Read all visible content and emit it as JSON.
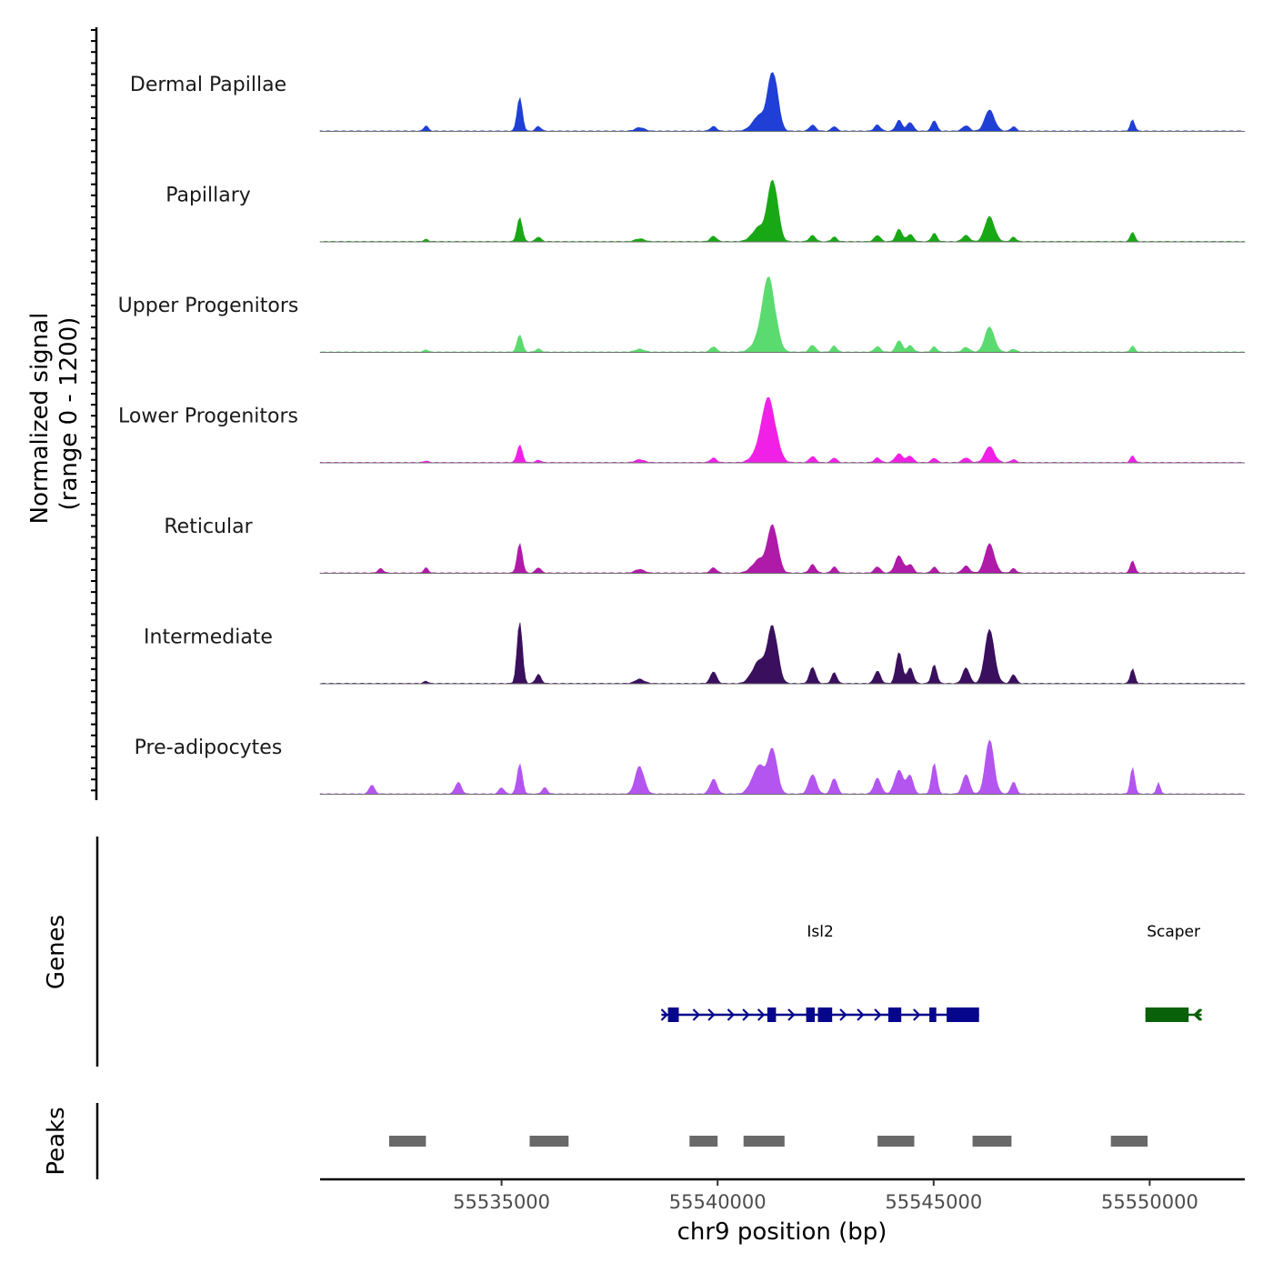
{
  "chart_data": {
    "type": "area",
    "title": "",
    "chromosome": "chr9",
    "xlabel": "chr9 position (bp)",
    "ylabel_line1": "Normalized signal",
    "ylabel_line2": "(range 0 - 1200)",
    "yrange": [
      0,
      1200
    ],
    "xlim": [
      55530800,
      55552200
    ],
    "x_ticks": [
      55535000,
      55540000,
      55545000,
      55550000
    ],
    "x_tick_labels": [
      "55535000",
      "55540000",
      "55545000",
      "55550000"
    ],
    "tracks": [
      {
        "name": "Dermal Papillae",
        "color": "#1f3fd6",
        "scale": 0.75,
        "peaks": [
          [
            55533250,
            70,
            50
          ],
          [
            55535420,
            420,
            60
          ],
          [
            55535850,
            60,
            60
          ],
          [
            55538200,
            50,
            100
          ],
          [
            55539900,
            60,
            70
          ],
          [
            55540950,
            200,
            150
          ],
          [
            55541280,
            830,
            110
          ],
          [
            55542200,
            80,
            70
          ],
          [
            55542700,
            60,
            60
          ],
          [
            55543700,
            80,
            70
          ],
          [
            55544200,
            140,
            70
          ],
          [
            55544450,
            120,
            70
          ],
          [
            55545010,
            140,
            60
          ],
          [
            55545750,
            70,
            80
          ],
          [
            55546300,
            280,
            110
          ],
          [
            55546850,
            60,
            60
          ],
          [
            55549600,
            150,
            50
          ]
        ]
      },
      {
        "name": "Papillary",
        "color": "#19a815",
        "scale": 0.78,
        "peaks": [
          [
            55533250,
            30,
            50
          ],
          [
            55535420,
            300,
            60
          ],
          [
            55535850,
            60,
            60
          ],
          [
            55538200,
            40,
            100
          ],
          [
            55539900,
            70,
            70
          ],
          [
            55540950,
            190,
            150
          ],
          [
            55541280,
            860,
            110
          ],
          [
            55542200,
            80,
            70
          ],
          [
            55542700,
            60,
            60
          ],
          [
            55543700,
            80,
            70
          ],
          [
            55544200,
            160,
            70
          ],
          [
            55544450,
            100,
            70
          ],
          [
            55545010,
            110,
            60
          ],
          [
            55545750,
            80,
            80
          ],
          [
            55546300,
            330,
            110
          ],
          [
            55546850,
            60,
            60
          ],
          [
            55549600,
            130,
            50
          ]
        ]
      },
      {
        "name": "Upper Progenitors",
        "color": "#5bdb6f",
        "scale": 1.05,
        "peaks": [
          [
            55533250,
            30,
            50
          ],
          [
            55535420,
            220,
            60
          ],
          [
            55535850,
            40,
            60
          ],
          [
            55538200,
            40,
            100
          ],
          [
            55539900,
            70,
            70
          ],
          [
            55540950,
            160,
            150
          ],
          [
            55541200,
            950,
            140
          ],
          [
            55542200,
            90,
            70
          ],
          [
            55542700,
            80,
            60
          ],
          [
            55543700,
            70,
            70
          ],
          [
            55544200,
            150,
            70
          ],
          [
            55544450,
            90,
            70
          ],
          [
            55545010,
            70,
            60
          ],
          [
            55545750,
            60,
            80
          ],
          [
            55546300,
            330,
            110
          ],
          [
            55546850,
            40,
            60
          ],
          [
            55549600,
            80,
            50
          ]
        ]
      },
      {
        "name": "Lower Progenitors",
        "color": "#f020e6",
        "scale": 0.95,
        "peaks": [
          [
            55533250,
            20,
            50
          ],
          [
            55535420,
            220,
            60
          ],
          [
            55535850,
            30,
            60
          ],
          [
            55538200,
            40,
            100
          ],
          [
            55539900,
            60,
            70
          ],
          [
            55540950,
            150,
            150
          ],
          [
            55541200,
            810,
            150
          ],
          [
            55542200,
            80,
            70
          ],
          [
            55542700,
            60,
            60
          ],
          [
            55543700,
            60,
            70
          ],
          [
            55544200,
            110,
            90
          ],
          [
            55544450,
            90,
            70
          ],
          [
            55545010,
            60,
            60
          ],
          [
            55545750,
            60,
            80
          ],
          [
            55546300,
            210,
            110
          ],
          [
            55546850,
            40,
            60
          ],
          [
            55549600,
            90,
            50
          ]
        ]
      },
      {
        "name": "Reticular",
        "color": "#b01aa8",
        "scale": 0.62,
        "peaks": [
          [
            55532200,
            60,
            60
          ],
          [
            55533250,
            70,
            50
          ],
          [
            55535420,
            370,
            60
          ],
          [
            55535850,
            70,
            60
          ],
          [
            55538200,
            50,
            100
          ],
          [
            55539900,
            70,
            70
          ],
          [
            55540950,
            180,
            150
          ],
          [
            55541280,
            660,
            110
          ],
          [
            55542200,
            110,
            70
          ],
          [
            55542700,
            80,
            60
          ],
          [
            55543700,
            80,
            70
          ],
          [
            55544200,
            220,
            90
          ],
          [
            55544450,
            120,
            70
          ],
          [
            55545010,
            80,
            60
          ],
          [
            55545750,
            90,
            80
          ],
          [
            55546300,
            380,
            110
          ],
          [
            55546850,
            60,
            60
          ],
          [
            55549600,
            170,
            50
          ]
        ]
      },
      {
        "name": "Intermediate",
        "color": "#3a0f5e",
        "scale": 0.5,
        "peaks": [
          [
            55533250,
            30,
            50
          ],
          [
            55535420,
            780,
            60
          ],
          [
            55535850,
            120,
            60
          ],
          [
            55538200,
            60,
            100
          ],
          [
            55539900,
            160,
            70
          ],
          [
            55540950,
            300,
            150
          ],
          [
            55541280,
            780,
            110
          ],
          [
            55542200,
            210,
            70
          ],
          [
            55542700,
            140,
            60
          ],
          [
            55543700,
            160,
            70
          ],
          [
            55544200,
            400,
            70
          ],
          [
            55544450,
            220,
            70
          ],
          [
            55545010,
            250,
            60
          ],
          [
            55545750,
            200,
            80
          ],
          [
            55546300,
            700,
            110
          ],
          [
            55546850,
            120,
            60
          ],
          [
            55549600,
            200,
            50
          ]
        ]
      },
      {
        "name": "Pre-adipocytes",
        "color": "#b455f0",
        "scale": 0.35,
        "peaks": [
          [
            55532000,
            120,
            60
          ],
          [
            55534000,
            150,
            70
          ],
          [
            55535000,
            80,
            60
          ],
          [
            55535420,
            380,
            60
          ],
          [
            55536000,
            80,
            60
          ],
          [
            55538200,
            380,
            100
          ],
          [
            55539900,
            200,
            80
          ],
          [
            55540950,
            380,
            150
          ],
          [
            55541280,
            600,
            100
          ],
          [
            55542200,
            250,
            90
          ],
          [
            55542700,
            200,
            70
          ],
          [
            55543700,
            200,
            80
          ],
          [
            55544200,
            300,
            100
          ],
          [
            55544450,
            260,
            70
          ],
          [
            55545010,
            420,
            60
          ],
          [
            55545750,
            250,
            80
          ],
          [
            55546300,
            700,
            100
          ],
          [
            55546850,
            160,
            60
          ],
          [
            55549600,
            360,
            50
          ],
          [
            55550200,
            150,
            40
          ]
        ]
      }
    ],
    "genes_track_label": "Genes",
    "genes": [
      {
        "name": "Isl2",
        "strand": "+",
        "start": 55538700,
        "end": 55546050,
        "color": "#06068c",
        "exons": [
          [
            55538850,
            55539100
          ],
          [
            55541150,
            55541350
          ],
          [
            55542050,
            55542250
          ],
          [
            55542320,
            55542650
          ],
          [
            55543950,
            55544250
          ],
          [
            55544900,
            55545060
          ],
          [
            55545300,
            55546050
          ]
        ],
        "arrows": [
          55539500,
          55539850,
          55540300,
          55540650,
          55541000,
          55541700,
          55542900,
          55543300,
          55543700,
          55544600
        ]
      },
      {
        "name": "Scaper",
        "strand": "-",
        "start": 55549900,
        "end": 55551200,
        "color": "#096109",
        "exons": [
          [
            55549900,
            55550900
          ]
        ],
        "arrows": [
          55551100
        ]
      }
    ],
    "peaks_track_label": "Peaks",
    "peak_regions": [
      [
        55532400,
        55533250
      ],
      [
        55535650,
        55536550
      ],
      [
        55539350,
        55540000
      ],
      [
        55540600,
        55541550
      ],
      [
        55543700,
        55544550
      ],
      [
        55545900,
        55546800
      ],
      [
        55549100,
        55549950
      ]
    ]
  }
}
